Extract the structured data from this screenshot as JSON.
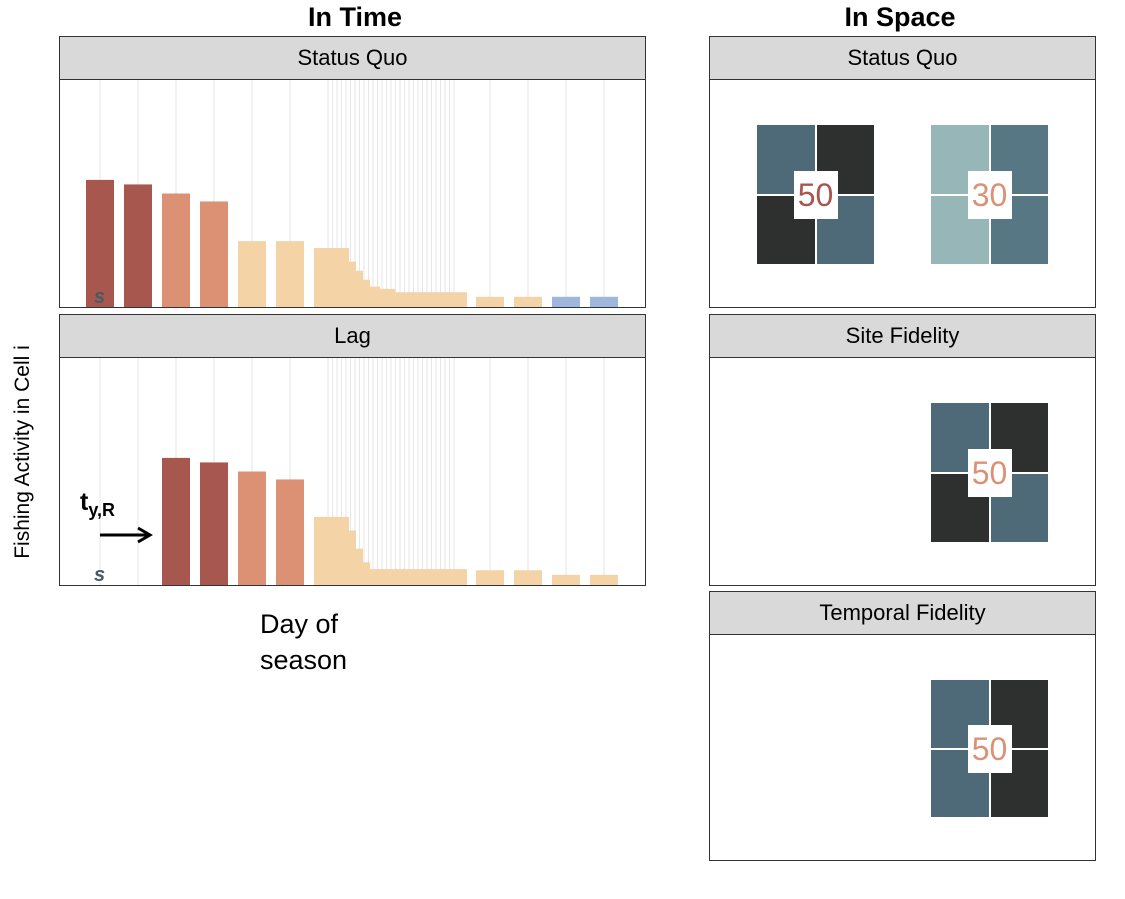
{
  "headers": {
    "in_time": "In Time",
    "in_space": "In Space"
  },
  "y_axis_label": "Fishing Activity in Cell i",
  "x_axis_label_line1": "Day of",
  "x_axis_label_line2": "season",
  "time_panels": [
    {
      "title": "Status Quo",
      "s_label": "s",
      "bars": [
        {
          "value": 0.56,
          "color": "#a8574f"
        },
        {
          "value": 0.54,
          "color": "#a8574f"
        },
        {
          "value": 0.5,
          "color": "#dc9175"
        },
        {
          "value": 0.465,
          "color": "#dc9175"
        },
        {
          "value": 0.29,
          "color": "#f4d3a7"
        },
        {
          "value": 0.29,
          "color": "#f4d3a7"
        },
        {
          "value": 0.26,
          "color": "#f4d3a7"
        },
        {
          "value": 0.2,
          "color": "#f4d3a7"
        },
        {
          "value": 0.16,
          "color": "#f4d3a7"
        },
        {
          "value": 0.12,
          "color": "#f4d3a7"
        },
        {
          "value": 0.09,
          "color": "#f4d3a7"
        },
        {
          "value": 0.08,
          "color": "#f4d3a7"
        },
        {
          "value": 0.065,
          "color": "#f4d3a7"
        },
        {
          "value": 0.065,
          "color": "#f4d3a7"
        },
        {
          "value": 0.045,
          "color": "#f4d3a7"
        },
        {
          "value": 0.045,
          "color": "#f4d3a7"
        },
        {
          "value": 0.045,
          "color": "#9fb7dc"
        },
        {
          "value": 0.045,
          "color": "#9fb7dc"
        }
      ]
    },
    {
      "title": "Lag",
      "s_label": "s",
      "t_label_main": "t",
      "t_label_sub": "y,R",
      "bars": [
        {
          "value": 0.0,
          "color": "#a8574f"
        },
        {
          "value": 0.0,
          "color": "#a8574f"
        },
        {
          "value": 0.56,
          "color": "#a8574f"
        },
        {
          "value": 0.54,
          "color": "#a8574f"
        },
        {
          "value": 0.5,
          "color": "#dc9175"
        },
        {
          "value": 0.465,
          "color": "#dc9175"
        },
        {
          "value": 0.3,
          "color": "#f4d3a7"
        },
        {
          "value": 0.24,
          "color": "#f4d3a7"
        },
        {
          "value": 0.16,
          "color": "#f4d3a7"
        },
        {
          "value": 0.1,
          "color": "#f4d3a7"
        },
        {
          "value": 0.07,
          "color": "#f4d3a7"
        },
        {
          "value": 0.07,
          "color": "#f4d3a7"
        },
        {
          "value": 0.07,
          "color": "#f4d3a7"
        },
        {
          "value": 0.07,
          "color": "#f4d3a7"
        },
        {
          "value": 0.065,
          "color": "#f4d3a7"
        },
        {
          "value": 0.065,
          "color": "#f4d3a7"
        },
        {
          "value": 0.045,
          "color": "#f4d3a7"
        },
        {
          "value": 0.045,
          "color": "#f4d3a7"
        }
      ]
    }
  ],
  "space_panels": [
    {
      "title": "Status Quo",
      "blocks": [
        {
          "label": "50",
          "label_color": "#a8574f",
          "cells": [
            "#4e6a78",
            "#2e3030",
            "#2e3030",
            "#4e6a78"
          ]
        },
        {
          "label": "30",
          "label_color": "#dc9175",
          "cells": [
            "#97b6b8",
            "#577785",
            "#97b6b8",
            "#577785"
          ]
        }
      ]
    },
    {
      "title": "Site Fidelity",
      "blocks": [
        {
          "label": "50",
          "label_color": "#dc9175",
          "cells": [
            "#4e6a78",
            "#2e3030",
            "#2e3030",
            "#4e6a78"
          ]
        }
      ]
    },
    {
      "title": "Temporal Fidelity",
      "blocks": [
        {
          "label": "50",
          "label_color": "#dc9175",
          "cells": [
            "#4e6a78",
            "#2e3030",
            "#4e6a78",
            "#2e3030"
          ]
        }
      ]
    }
  ]
}
